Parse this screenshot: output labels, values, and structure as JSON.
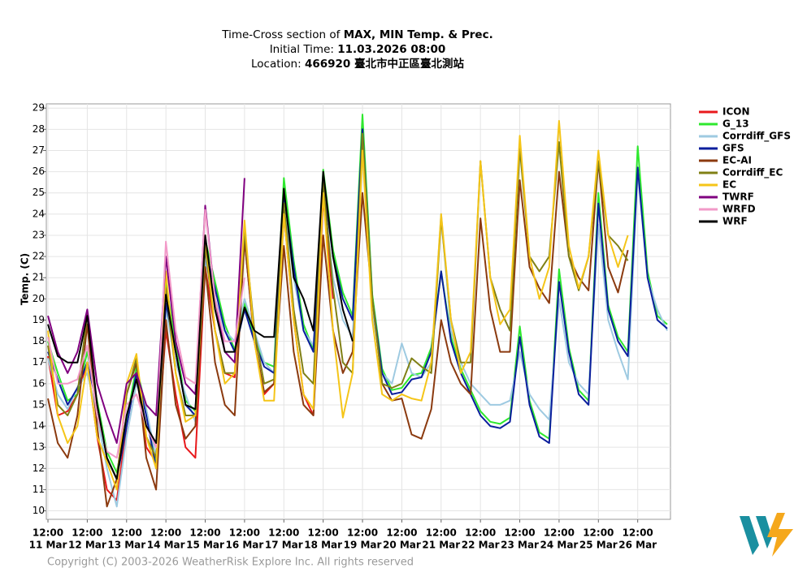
{
  "chart_data": {
    "type": "line",
    "title_lines": [
      [
        "Time-Cross section of ",
        "MAX, MIN Temp. & Prec."
      ],
      [
        "Initial Time: ",
        "11.03.2026 08:00"
      ],
      [
        "Location: ",
        "466920 臺北市中正區臺北測站"
      ]
    ],
    "y_label": "Temp. (C)",
    "footer": "Copyright (C) 2003-2026 WeatherRisk Explore Inc. All rights reserved",
    "grid": true,
    "legend": "right",
    "xlim": [
      -1,
      380
    ],
    "ylim": [
      9.6,
      29.2
    ],
    "yticks": [
      10,
      11,
      12,
      13,
      14,
      15,
      16,
      17,
      18,
      19,
      20,
      21,
      22,
      23,
      24,
      25,
      26,
      27,
      28,
      29
    ],
    "xticks": [
      {
        "value": 0,
        "label": "12:00"
      },
      {
        "value": 24,
        "label": "12:00"
      },
      {
        "value": 48,
        "label": "12:00"
      },
      {
        "value": 72,
        "label": "12:00"
      },
      {
        "value": 96,
        "label": "12:00"
      },
      {
        "value": 120,
        "label": "12:00"
      },
      {
        "value": 144,
        "label": "12:00"
      },
      {
        "value": 168,
        "label": "12:00"
      },
      {
        "value": 192,
        "label": "12:00"
      },
      {
        "value": 216,
        "label": "12:00"
      },
      {
        "value": 240,
        "label": "12:00"
      },
      {
        "value": 264,
        "label": "12:00"
      },
      {
        "value": 288,
        "label": "12:00"
      },
      {
        "value": 312,
        "label": "12:00"
      },
      {
        "value": 336,
        "label": "12:00"
      },
      {
        "value": 360,
        "label": "12:00"
      }
    ],
    "xtick_dates": [
      "11 Mar",
      "12 Mar",
      "13 Mar",
      "14 Mar",
      "15 Mar",
      "16 Mar",
      "17 Mar",
      "18 Mar",
      "19 Mar",
      "20 Mar",
      "21 Mar",
      "22 Mar",
      "23 Mar",
      "24 Mar",
      "25 Mar",
      "26 Mar"
    ],
    "x": [
      0,
      6,
      12,
      18,
      24,
      30,
      36,
      42,
      48,
      54,
      60,
      66,
      72,
      78,
      84,
      90,
      96,
      102,
      108,
      114,
      120,
      126,
      132,
      138,
      144,
      150,
      156,
      162,
      168,
      174,
      180,
      186,
      192,
      198,
      204,
      210,
      216,
      222,
      228,
      234,
      240,
      246,
      252,
      258,
      264,
      270,
      276,
      282,
      288,
      294,
      300,
      306,
      312,
      318,
      324,
      330,
      336,
      342,
      348,
      354,
      360,
      366,
      372,
      378
    ],
    "series": [
      {
        "name": "ICON",
        "color": "#e8191c",
        "values": [
          17.3,
          14.5,
          14.7,
          15.5,
          17.0,
          13.5,
          11.0,
          10.5,
          14.0,
          16.5,
          13.0,
          12.3,
          18.5,
          15.5,
          13.0,
          12.5,
          21.5,
          18.5,
          16.5,
          16.3,
          22.8,
          18.0,
          15.5,
          16.0,
          24.0,
          19.0,
          15.5,
          14.5,
          24.8,
          20.0,
          null,
          null,
          null,
          null,
          null,
          null,
          null,
          null,
          null,
          null,
          null,
          null,
          null,
          null,
          null,
          null,
          null,
          null,
          null,
          null,
          null,
          null,
          null,
          null,
          null,
          null,
          null,
          null,
          null,
          null,
          null,
          null,
          null,
          null
        ]
      },
      {
        "name": "G_13",
        "color": "#2ee82e",
        "values": [
          18.0,
          16.5,
          15.2,
          15.5,
          17.5,
          15.2,
          12.8,
          11.8,
          14.3,
          16.8,
          14.8,
          12.2,
          20.8,
          17.8,
          15.2,
          14.7,
          22.8,
          20.8,
          18.8,
          17.6,
          19.8,
          18.2,
          17.0,
          16.8,
          25.7,
          21.8,
          18.8,
          17.6,
          26.1,
          22.3,
          20.3,
          19.2,
          28.7,
          20.2,
          16.7,
          15.7,
          15.8,
          16.4,
          16.5,
          17.7,
          21.3,
          18.2,
          16.7,
          15.7,
          14.7,
          14.2,
          14.1,
          14.4,
          18.7,
          15.2,
          13.7,
          13.4,
          21.4,
          17.7,
          15.7,
          15.2,
          25.0,
          19.7,
          18.2,
          17.5,
          27.2,
          21.3,
          19.2,
          18.8
        ]
      },
      {
        "name": "Corrdiff_GFS",
        "color": "#9ecae1",
        "values": [
          17.2,
          15.5,
          14.8,
          15.8,
          16.5,
          14.5,
          12.0,
          10.2,
          13.5,
          16.0,
          14.8,
          12.5,
          19.5,
          17.0,
          15.5,
          14.2,
          21.8,
          20.0,
          18.5,
          18.0,
          20.0,
          18.5,
          17.0,
          16.5,
          24.5,
          21.0,
          18.5,
          17.8,
          25.0,
          21.0,
          19.0,
          18.2,
          27.5,
          19.5,
          16.5,
          16.0,
          17.9,
          16.5,
          16.3,
          17.0,
          24.0,
          18.5,
          17.0,
          16.0,
          15.5,
          15.0,
          15.0,
          15.2,
          17.5,
          15.5,
          14.8,
          14.3,
          20.0,
          17.0,
          16.0,
          15.5,
          23.5,
          19.0,
          17.5,
          16.2,
          26.0,
          21.0,
          19.5,
          18.5
        ]
      },
      {
        "name": "GFS",
        "color": "#0a1e9c",
        "values": [
          17.5,
          16.2,
          15.0,
          15.8,
          17.0,
          15.0,
          12.5,
          11.5,
          14.0,
          16.5,
          14.5,
          12.0,
          19.8,
          17.5,
          15.0,
          14.5,
          22.3,
          20.5,
          18.5,
          17.5,
          19.5,
          18.0,
          16.8,
          16.5,
          25.0,
          21.5,
          18.5,
          17.5,
          25.5,
          22.0,
          20.0,
          19.0,
          28.0,
          20.0,
          16.5,
          15.5,
          15.6,
          16.2,
          16.3,
          17.5,
          21.3,
          18.0,
          16.5,
          15.5,
          14.5,
          14.0,
          13.9,
          14.2,
          18.2,
          15.0,
          13.5,
          13.2,
          20.8,
          17.5,
          15.5,
          15.0,
          24.5,
          19.5,
          18.0,
          17.3,
          26.2,
          21.0,
          19.0,
          18.6
        ]
      },
      {
        "name": "EC-AI",
        "color": "#8b3a0f",
        "values": [
          15.3,
          13.2,
          12.5,
          14.5,
          18.8,
          14.0,
          10.2,
          11.5,
          15.5,
          17.0,
          12.5,
          11.0,
          19.0,
          15.0,
          13.4,
          14.0,
          21.5,
          17.0,
          15.0,
          14.5,
          22.8,
          18.0,
          15.6,
          16.0,
          22.5,
          17.5,
          15.0,
          14.5,
          23.0,
          18.5,
          16.5,
          17.5,
          25.0,
          20.0,
          16.0,
          15.2,
          15.3,
          13.6,
          13.4,
          14.8,
          19.0,
          17.0,
          16.0,
          15.5,
          23.8,
          19.5,
          17.5,
          17.5,
          25.6,
          21.5,
          20.5,
          19.8,
          26.0,
          22.0,
          21.0,
          20.4,
          26.5,
          21.5,
          20.3,
          22.3,
          null,
          null,
          null,
          null
        ]
      },
      {
        "name": "Corrdiff_EC",
        "color": "#808015",
        "values": [
          17.8,
          15.0,
          14.5,
          15.5,
          19.3,
          15.0,
          12.5,
          11.5,
          15.5,
          17.2,
          13.5,
          12.5,
          20.5,
          16.5,
          14.5,
          14.5,
          22.5,
          18.5,
          16.5,
          16.5,
          23.2,
          18.5,
          16.0,
          16.2,
          24.5,
          19.5,
          16.5,
          16.0,
          25.5,
          20.5,
          17.0,
          16.5,
          27.8,
          20.0,
          16.0,
          15.8,
          16.0,
          17.2,
          16.8,
          16.5,
          23.8,
          19.0,
          17.0,
          17.0,
          26.5,
          21.0,
          19.5,
          18.5,
          27.1,
          22.0,
          21.3,
          22.0,
          27.4,
          22.0,
          20.4,
          22.0,
          26.5,
          23.0,
          22.5,
          21.8,
          null,
          null,
          null,
          null
        ]
      },
      {
        "name": "EC",
        "color": "#f5c518",
        "values": [
          18.5,
          14.5,
          13.2,
          14.0,
          17.0,
          13.5,
          12.3,
          11.0,
          16.0,
          17.4,
          13.5,
          12.0,
          21.3,
          16.5,
          14.2,
          14.5,
          23.0,
          18.5,
          16.0,
          16.5,
          23.7,
          18.0,
          15.2,
          15.2,
          24.0,
          19.0,
          15.5,
          14.8,
          25.0,
          18.5,
          14.4,
          16.5,
          27.0,
          19.0,
          15.5,
          15.2,
          15.5,
          15.3,
          15.2,
          17.0,
          24.0,
          19.0,
          16.5,
          17.5,
          26.5,
          21.0,
          18.8,
          19.5,
          27.7,
          22.0,
          20.0,
          21.5,
          28.4,
          22.5,
          20.5,
          22.0,
          27.0,
          23.0,
          21.5,
          23.0,
          null,
          null,
          null,
          null
        ]
      },
      {
        "name": "TWRF",
        "color": "#800080",
        "values": [
          19.2,
          17.5,
          16.5,
          17.5,
          19.5,
          16.0,
          14.5,
          13.2,
          16.0,
          16.5,
          15.0,
          14.5,
          22.0,
          18.0,
          16.0,
          15.5,
          24.4,
          20.0,
          17.5,
          17.0,
          25.7,
          null,
          null,
          null,
          null,
          null,
          null,
          null,
          null,
          null,
          null,
          null,
          null,
          null,
          null,
          null,
          null,
          null,
          null,
          null,
          null,
          null,
          null,
          null,
          null,
          null,
          null,
          null,
          null,
          null,
          null,
          null,
          null,
          null,
          null,
          null,
          null,
          null,
          null,
          null,
          null,
          null,
          null,
          null
        ]
      },
      {
        "name": "WRFD",
        "color": "#f29ac8",
        "values": [
          18.2,
          16.0,
          16.0,
          16.2,
          17.8,
          14.5,
          12.8,
          12.5,
          15.0,
          15.5,
          14.0,
          13.0,
          22.7,
          18.5,
          16.3,
          16.0,
          24.2,
          20.0,
          18.0,
          18.0,
          21.0,
          null,
          null,
          null,
          null,
          null,
          null,
          null,
          null,
          null,
          null,
          null,
          null,
          null,
          null,
          null,
          null,
          null,
          null,
          null,
          null,
          null,
          null,
          null,
          null,
          null,
          null,
          null,
          null,
          null,
          null,
          null,
          null,
          null,
          null,
          null,
          null,
          null,
          null,
          null,
          null,
          null,
          null,
          null
        ]
      },
      {
        "name": "WRF",
        "color": "#000000",
        "values": [
          18.8,
          17.3,
          17.0,
          17.0,
          19.2,
          15.0,
          12.5,
          11.5,
          14.5,
          16.2,
          14.0,
          13.2,
          20.2,
          17.5,
          15.0,
          14.8,
          23.0,
          19.5,
          17.5,
          17.5,
          19.6,
          18.5,
          18.2,
          18.2,
          25.2,
          21.0,
          20.0,
          18.5,
          26.0,
          22.0,
          19.5,
          18.0,
          null,
          null,
          null,
          null,
          null,
          null,
          null,
          null,
          null,
          null,
          null,
          null,
          null,
          null,
          null,
          null,
          null,
          null,
          null,
          null,
          null,
          null,
          null,
          null,
          null,
          null,
          null,
          null,
          null,
          null,
          null,
          null
        ]
      }
    ]
  }
}
